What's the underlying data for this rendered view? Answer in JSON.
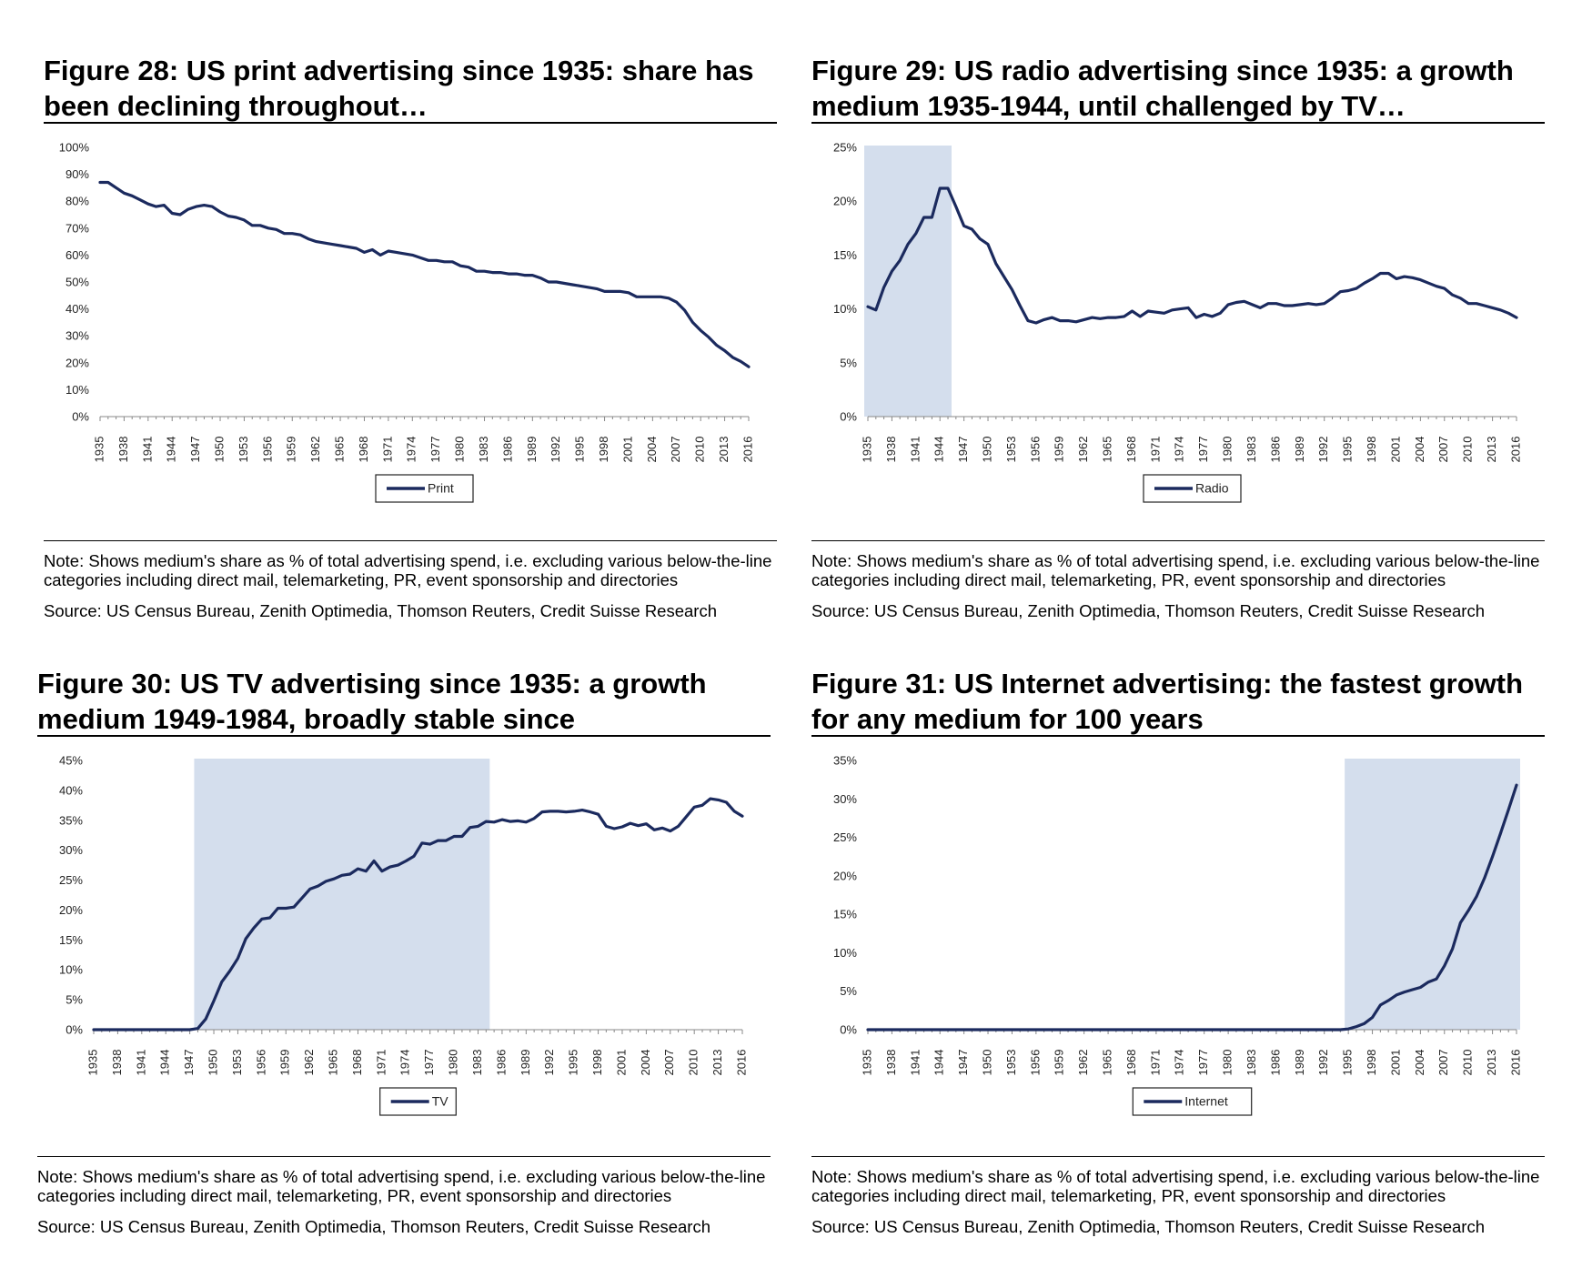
{
  "figures": [
    {
      "title": "Figure 28: US print advertising since 1935: share has been declining throughout…",
      "note": "Note: Shows medium's share as % of total advertising spend, i.e. excluding various below-the-line categories including direct mail, telemarketing, PR, event sponsorship and directories",
      "source": "Source: US Census Bureau, Zenith Optimedia, Thomson Reuters, Credit Suisse Research"
    },
    {
      "title": "Figure 29: US radio advertising since 1935: a growth medium 1935-1944, until challenged by TV…",
      "note": "Note: Shows medium's share as % of total advertising spend, i.e. excluding various below-the-line categories including direct mail, telemarketing, PR, event sponsorship and directories",
      "source": "Source: US Census Bureau, Zenith Optimedia, Thomson Reuters, Credit Suisse Research"
    },
    {
      "title": "Figure 30: US TV advertising since 1935: a growth medium 1949-1984, broadly stable since",
      "note": "Note: Shows medium's share as % of total advertising spend, i.e. excluding various below-the-line categories including direct mail, telemarketing, PR, event sponsorship and directories",
      "source": "Source: US Census Bureau, Zenith Optimedia, Thomson Reuters, Credit Suisse Research"
    },
    {
      "title": "Figure 31: US Internet advertising: the fastest growth for any medium for 100 years",
      "note": "Note: Shows medium's share as % of total advertising spend, i.e. excluding various below-the-line categories including direct mail, telemarketing, PR, event sponsorship and directories",
      "source": "Source: US Census Bureau, Zenith Optimedia, Thomson Reuters, Credit Suisse Research"
    }
  ],
  "chart_data": [
    {
      "type": "line",
      "xlim": [
        1935,
        2016
      ],
      "ylim": [
        0,
        100
      ],
      "y_ticks": [
        0,
        10,
        20,
        30,
        40,
        50,
        60,
        70,
        80,
        90,
        100
      ],
      "y_tick_labels": [
        "0%",
        "10%",
        "20%",
        "30%",
        "40%",
        "50%",
        "60%",
        "70%",
        "80%",
        "90%",
        "100%"
      ],
      "x_tick_labels": [
        "1935",
        "1938",
        "1941",
        "1944",
        "1947",
        "1950",
        "1953",
        "1956",
        "1959",
        "1962",
        "1965",
        "1968",
        "1971",
        "1974",
        "1977",
        "1980",
        "1983",
        "1986",
        "1989",
        "1992",
        "1995",
        "1998",
        "2001",
        "2004",
        "2007",
        "2010",
        "2013",
        "2016"
      ],
      "legend": "bottom-center",
      "grid": false,
      "series": [
        {
          "name": "Print",
          "color": "#1b2a5e",
          "x": [
            1935,
            1936,
            1937,
            1938,
            1939,
            1940,
            1941,
            1942,
            1943,
            1944,
            1945,
            1946,
            1947,
            1948,
            1949,
            1950,
            1951,
            1952,
            1953,
            1954,
            1955,
            1956,
            1957,
            1958,
            1959,
            1960,
            1961,
            1962,
            1963,
            1964,
            1965,
            1966,
            1967,
            1968,
            1969,
            1970,
            1971,
            1972,
            1973,
            1974,
            1975,
            1976,
            1977,
            1978,
            1979,
            1980,
            1981,
            1982,
            1983,
            1984,
            1985,
            1986,
            1987,
            1988,
            1989,
            1990,
            1991,
            1992,
            1993,
            1994,
            1995,
            1996,
            1997,
            1998,
            1999,
            2000,
            2001,
            2002,
            2003,
            2004,
            2005,
            2006,
            2007,
            2008,
            2009,
            2010,
            2011,
            2012,
            2013,
            2014,
            2015,
            2016
          ],
          "y": [
            87,
            87,
            85,
            83,
            82,
            80.5,
            79,
            78,
            78.5,
            75.5,
            75,
            77,
            78,
            78.5,
            78,
            76,
            74.5,
            74,
            73,
            71,
            71,
            70,
            69.5,
            68,
            68,
            67.5,
            66,
            65,
            64.5,
            64,
            63.5,
            63,
            62.5,
            61,
            62,
            60,
            61.5,
            61,
            60.5,
            60,
            59,
            58,
            58,
            57.5,
            57.5,
            56,
            55.5,
            54,
            54,
            53.5,
            53.5,
            53,
            53,
            52.5,
            52.5,
            51.5,
            50,
            50,
            49.5,
            49,
            48.5,
            48,
            47.5,
            46.5,
            46.5,
            46.5,
            46,
            44.5,
            44.5,
            44.5,
            44.5,
            44,
            42.5,
            39.5,
            35,
            32,
            29.5,
            26.5,
            24.5,
            22,
            20.5,
            18.5
          ]
        }
      ]
    },
    {
      "type": "line",
      "xlim": [
        1935,
        2016
      ],
      "ylim": [
        0,
        25
      ],
      "y_ticks": [
        0,
        5,
        10,
        15,
        20,
        25
      ],
      "y_tick_labels": [
        "0%",
        "5%",
        "10%",
        "15%",
        "20%",
        "25%"
      ],
      "x_tick_labels": [
        "1935",
        "1938",
        "1941",
        "1944",
        "1947",
        "1950",
        "1953",
        "1956",
        "1959",
        "1962",
        "1965",
        "1968",
        "1971",
        "1974",
        "1977",
        "1980",
        "1983",
        "1986",
        "1989",
        "1992",
        "1995",
        "1998",
        "2001",
        "2004",
        "2007",
        "2010",
        "2013",
        "2016"
      ],
      "shaded_range": [
        1935,
        1945
      ],
      "legend": "bottom-center",
      "grid": false,
      "series": [
        {
          "name": "Radio",
          "color": "#1b2a5e",
          "x": [
            1935,
            1936,
            1937,
            1938,
            1939,
            1940,
            1941,
            1942,
            1943,
            1944,
            1945,
            1946,
            1947,
            1948,
            1949,
            1950,
            1951,
            1952,
            1953,
            1954,
            1955,
            1956,
            1957,
            1958,
            1959,
            1960,
            1961,
            1962,
            1963,
            1964,
            1965,
            1966,
            1967,
            1968,
            1969,
            1970,
            1971,
            1972,
            1973,
            1974,
            1975,
            1976,
            1977,
            1978,
            1979,
            1980,
            1981,
            1982,
            1983,
            1984,
            1985,
            1986,
            1987,
            1988,
            1989,
            1990,
            1991,
            1992,
            1993,
            1994,
            1995,
            1996,
            1997,
            1998,
            1999,
            2000,
            2001,
            2002,
            2003,
            2004,
            2005,
            2006,
            2007,
            2008,
            2009,
            2010,
            2011,
            2012,
            2013,
            2014,
            2015,
            2016
          ],
          "y": [
            10.2,
            9.9,
            12,
            13.5,
            14.5,
            16,
            17,
            18.5,
            18.5,
            21.2,
            21.2,
            19.5,
            17.7,
            17.4,
            16.5,
            16,
            14.2,
            13,
            11.8,
            10.3,
            8.9,
            8.7,
            9,
            9.2,
            8.9,
            8.9,
            8.8,
            9,
            9.2,
            9.1,
            9.2,
            9.2,
            9.3,
            9.8,
            9.3,
            9.8,
            9.7,
            9.6,
            9.9,
            10,
            10.1,
            9.2,
            9.5,
            9.3,
            9.6,
            10.4,
            10.6,
            10.7,
            10.4,
            10.1,
            10.5,
            10.5,
            10.3,
            10.3,
            10.4,
            10.5,
            10.4,
            10.5,
            11,
            11.6,
            11.7,
            11.9,
            12.4,
            12.8,
            13.3,
            13.3,
            12.8,
            13,
            12.9,
            12.7,
            12.4,
            12.1,
            11.9,
            11.3,
            11,
            10.5,
            10.5,
            10.3,
            10.1,
            9.9,
            9.6,
            9.2
          ]
        }
      ]
    },
    {
      "type": "line",
      "xlim": [
        1935,
        2016
      ],
      "ylim": [
        0,
        45
      ],
      "y_ticks": [
        0,
        5,
        10,
        15,
        20,
        25,
        30,
        35,
        40,
        45
      ],
      "y_tick_labels": [
        "0%",
        "5%",
        "10%",
        "15%",
        "20%",
        "25%",
        "30%",
        "35%",
        "40%",
        "45%"
      ],
      "x_tick_labels": [
        "1935",
        "1938",
        "1941",
        "1944",
        "1947",
        "1950",
        "1953",
        "1956",
        "1959",
        "1962",
        "1965",
        "1968",
        "1971",
        "1974",
        "1977",
        "1980",
        "1983",
        "1986",
        "1989",
        "1992",
        "1995",
        "1998",
        "2001",
        "2004",
        "2007",
        "2010",
        "2013",
        "2016"
      ],
      "shaded_range": [
        1948,
        1984
      ],
      "legend": "bottom-center",
      "grid": false,
      "series": [
        {
          "name": "TV",
          "color": "#1b2a5e",
          "x": [
            1935,
            1936,
            1937,
            1938,
            1939,
            1940,
            1941,
            1942,
            1943,
            1944,
            1945,
            1946,
            1947,
            1948,
            1949,
            1950,
            1951,
            1952,
            1953,
            1954,
            1955,
            1956,
            1957,
            1958,
            1959,
            1960,
            1961,
            1962,
            1963,
            1964,
            1965,
            1966,
            1967,
            1968,
            1969,
            1970,
            1971,
            1972,
            1973,
            1974,
            1975,
            1976,
            1977,
            1978,
            1979,
            1980,
            1981,
            1982,
            1983,
            1984,
            1985,
            1986,
            1987,
            1988,
            1989,
            1990,
            1991,
            1992,
            1993,
            1994,
            1995,
            1996,
            1997,
            1998,
            1999,
            2000,
            2001,
            2002,
            2003,
            2004,
            2005,
            2006,
            2007,
            2008,
            2009,
            2010,
            2011,
            2012,
            2013,
            2014,
            2015,
            2016
          ],
          "y": [
            0,
            0,
            0,
            0,
            0,
            0,
            0,
            0,
            0,
            0,
            0,
            0,
            0,
            0.2,
            1.8,
            4.8,
            8,
            9.8,
            11.9,
            15.2,
            17,
            18.5,
            18.7,
            20.3,
            20.3,
            20.5,
            22,
            23.5,
            24,
            24.8,
            25.2,
            25.8,
            26,
            26.9,
            26.5,
            28.2,
            26.5,
            27.2,
            27.5,
            28.2,
            29,
            31.2,
            31,
            31.6,
            31.6,
            32.3,
            32.3,
            33.8,
            34,
            34.8,
            34.7,
            35.1,
            34.8,
            34.9,
            34.7,
            35.3,
            36.4,
            36.5,
            36.5,
            36.4,
            36.5,
            36.7,
            36.4,
            36,
            34,
            33.6,
            33.9,
            34.5,
            34.1,
            34.4,
            33.4,
            33.7,
            33.2,
            34,
            35.6,
            37.2,
            37.5,
            38.6,
            38.4,
            38,
            36.5,
            35.7
          ]
        }
      ]
    },
    {
      "type": "line",
      "xlim": [
        1935,
        2016
      ],
      "ylim": [
        0,
        35
      ],
      "y_ticks": [
        0,
        5,
        10,
        15,
        20,
        25,
        30,
        35
      ],
      "y_tick_labels": [
        "0%",
        "5%",
        "10%",
        "15%",
        "20%",
        "25%",
        "30%",
        "35%"
      ],
      "x_tick_labels": [
        "1935",
        "1938",
        "1941",
        "1944",
        "1947",
        "1950",
        "1953",
        "1956",
        "1959",
        "1962",
        "1965",
        "1968",
        "1971",
        "1974",
        "1977",
        "1980",
        "1983",
        "1986",
        "1989",
        "1992",
        "1995",
        "1998",
        "2001",
        "2004",
        "2007",
        "2010",
        "2013",
        "2016"
      ],
      "shaded_range": [
        1995,
        2016
      ],
      "legend": "bottom-center",
      "grid": false,
      "series": [
        {
          "name": "Internet",
          "color": "#1b2a5e",
          "x": [
            1935,
            1994,
            1995,
            1996,
            1997,
            1998,
            1999,
            2000,
            2001,
            2002,
            2003,
            2004,
            2005,
            2006,
            2007,
            2008,
            2009,
            2010,
            2011,
            2012,
            2013,
            2014,
            2015,
            2016
          ],
          "y": [
            0,
            0,
            0.1,
            0.4,
            0.8,
            1.6,
            3.2,
            3.8,
            4.5,
            4.9,
            5.2,
            5.5,
            6.2,
            6.6,
            8.3,
            10.5,
            13.9,
            15.5,
            17.3,
            19.7,
            22.5,
            25.5,
            28.6,
            31.8
          ]
        }
      ]
    }
  ]
}
